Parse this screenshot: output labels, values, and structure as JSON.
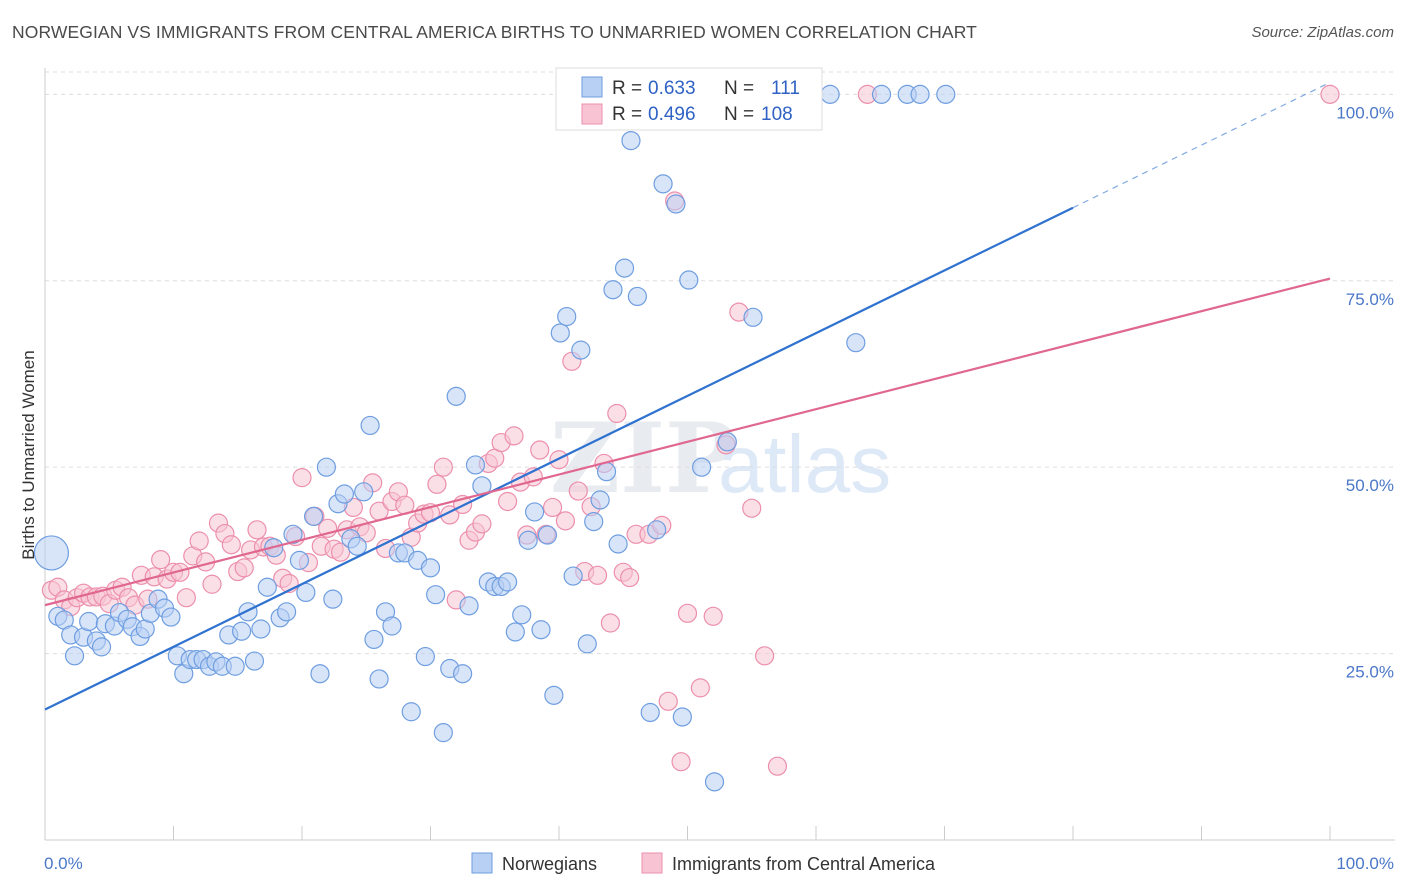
{
  "title": "NORWEGIAN VS IMMIGRANTS FROM CENTRAL AMERICA BIRTHS TO UNMARRIED WOMEN CORRELATION CHART",
  "source": "Source: ZipAtlas.com",
  "watermark": {
    "zip": "ZIP",
    "atlas": "atlas"
  },
  "colors": {
    "blue_fill": "#b8d0f4",
    "blue_stroke": "#6f9ee0",
    "blue_line": "#2f72d0",
    "pink_fill": "#f8c4d4",
    "pink_stroke": "#ec8fad",
    "pink_line": "#e0678f",
    "grid": "#dddddd",
    "tick_text": "#4a77c8"
  },
  "legend": {
    "rows": [
      {
        "r_label": "R = ",
        "r_value": "0.633",
        "n_label": "N = ",
        "n_value": "111"
      },
      {
        "r_label": "R = ",
        "r_value": "0.496",
        "n_label": "N = ",
        "n_value": "108"
      }
    ]
  },
  "chart_data": {
    "type": "scatter",
    "title": "NORWEGIAN VS IMMIGRANTS FROM CENTRAL AMERICA BIRTHS TO UNMARRIED WOMEN CORRELATION CHART",
    "xlabel": "",
    "ylabel": "Births to Unmarried Women",
    "xlim": [
      0,
      100
    ],
    "ylim": [
      0,
      103
    ],
    "x_tick_labels": [
      "0.0%",
      "100.0%"
    ],
    "y_ticks": [
      25,
      50,
      75,
      100
    ],
    "y_tick_labels": [
      "25.0%",
      "50.0%",
      "75.0%",
      "100.0%"
    ],
    "grid": true,
    "legend_position": "bottom",
    "series": [
      {
        "name": "Norwegians",
        "trend": {
          "x0": 0,
          "y0": 17.5,
          "x1": 80,
          "y1": 84.8,
          "dash_to_x": 100,
          "dash_to_y": 101.6
        },
        "points": [
          [
            0.5,
            38.5,
            "big"
          ],
          [
            1,
            30
          ],
          [
            1.5,
            29.5
          ],
          [
            2,
            27.5
          ],
          [
            2.3,
            24.7
          ],
          [
            3,
            27.2
          ],
          [
            3.4,
            29.3
          ],
          [
            4,
            26.7
          ],
          [
            4.4,
            25.9
          ],
          [
            4.7,
            29
          ],
          [
            5.4,
            28.7
          ],
          [
            5.8,
            30.5
          ],
          [
            6.4,
            29.6
          ],
          [
            6.8,
            28.6
          ],
          [
            7.4,
            27.3
          ],
          [
            7.8,
            28.3
          ],
          [
            8.2,
            30.4
          ],
          [
            8.8,
            32.3
          ],
          [
            9.3,
            31.1
          ],
          [
            9.8,
            29.9
          ],
          [
            10.3,
            24.7
          ],
          [
            10.8,
            22.3
          ],
          [
            11.3,
            24.2
          ],
          [
            11.8,
            24.2
          ],
          [
            12.3,
            24.2
          ],
          [
            12.8,
            23.3
          ],
          [
            13.3,
            23.9
          ],
          [
            13.8,
            23.3
          ],
          [
            14.3,
            27.5
          ],
          [
            14.8,
            23.3
          ],
          [
            15.3,
            28
          ],
          [
            15.8,
            30.6
          ],
          [
            16.3,
            24
          ],
          [
            16.8,
            28.3
          ],
          [
            17.3,
            33.9
          ],
          [
            17.8,
            39.2
          ],
          [
            18.3,
            29.8
          ],
          [
            18.8,
            30.6
          ],
          [
            19.3,
            41
          ],
          [
            19.8,
            37.5
          ],
          [
            20.3,
            33.2
          ],
          [
            20.9,
            43.4
          ],
          [
            21.4,
            22.3
          ],
          [
            21.9,
            50
          ],
          [
            22.4,
            32.3
          ],
          [
            22.8,
            45.1
          ],
          [
            23.3,
            46.4
          ],
          [
            23.8,
            40.4
          ],
          [
            24.3,
            39.4
          ],
          [
            24.8,
            46.7
          ],
          [
            25.3,
            55.6
          ],
          [
            25.6,
            26.9
          ],
          [
            26,
            21.6
          ],
          [
            26.5,
            30.6
          ],
          [
            27,
            28.7
          ],
          [
            27.5,
            38.5
          ],
          [
            28,
            38.5
          ],
          [
            28.5,
            17.2
          ],
          [
            29,
            37.5
          ],
          [
            29.6,
            24.6
          ],
          [
            30,
            36.5
          ],
          [
            30.4,
            32.9
          ],
          [
            31,
            14.4
          ],
          [
            31.5,
            23
          ],
          [
            32,
            59.5
          ],
          [
            32.5,
            22.3
          ],
          [
            33,
            31.4
          ],
          [
            33.5,
            50.3
          ],
          [
            34,
            47.5
          ],
          [
            34.5,
            34.6
          ],
          [
            35,
            34
          ],
          [
            35.5,
            34
          ],
          [
            36,
            34.6
          ],
          [
            36.6,
            27.9
          ],
          [
            37.1,
            30.2
          ],
          [
            37.6,
            40.2
          ],
          [
            38.1,
            44
          ],
          [
            38.6,
            28.2
          ],
          [
            39.1,
            40.9
          ],
          [
            39.6,
            19.4
          ],
          [
            40.1,
            68
          ],
          [
            40.6,
            70.2
          ],
          [
            41.1,
            35.4
          ],
          [
            41.7,
            65.7
          ],
          [
            42.2,
            26.3
          ],
          [
            42.7,
            42.7
          ],
          [
            43.2,
            45.6
          ],
          [
            43.7,
            49.4
          ],
          [
            44.2,
            73.8
          ],
          [
            44.6,
            39.7
          ],
          [
            45.1,
            76.7
          ],
          [
            45.6,
            93.8
          ],
          [
            46.1,
            72.9
          ],
          [
            47.1,
            17.1
          ],
          [
            47.6,
            41.6
          ],
          [
            48.1,
            88
          ],
          [
            49.1,
            85.3
          ],
          [
            49.6,
            16.5
          ],
          [
            50.1,
            75.1
          ],
          [
            51.1,
            50
          ],
          [
            51.6,
            100
          ],
          [
            52.1,
            7.8
          ],
          [
            53.1,
            53.4
          ],
          [
            54.1,
            100
          ],
          [
            55.1,
            70.1
          ],
          [
            61.1,
            100
          ],
          [
            63.1,
            66.7
          ],
          [
            65.1,
            100
          ],
          [
            67.1,
            100
          ],
          [
            70.1,
            100
          ],
          [
            68.1,
            100
          ],
          [
            45.1,
            100
          ],
          [
            46.6,
            100
          ]
        ]
      },
      {
        "name": "Immigrants from Central America",
        "trend": {
          "x0": 0,
          "y0": 31.5,
          "x1": 100,
          "y1": 75.3
        },
        "points": [
          [
            0.5,
            33.5
          ],
          [
            1,
            33.9
          ],
          [
            1.5,
            32.2
          ],
          [
            2,
            31.3
          ],
          [
            2.5,
            32.5
          ],
          [
            3,
            33.1
          ],
          [
            3.5,
            32.6
          ],
          [
            4,
            32.6
          ],
          [
            4.5,
            32.7
          ],
          [
            5,
            31.7
          ],
          [
            5.5,
            33.5
          ],
          [
            6,
            33.9
          ],
          [
            6.5,
            32.5
          ],
          [
            7,
            31.5
          ],
          [
            7.5,
            35.5
          ],
          [
            8,
            32.3
          ],
          [
            8.5,
            35.3
          ],
          [
            9,
            37.6
          ],
          [
            9.5,
            35
          ],
          [
            10,
            35.9
          ],
          [
            10.5,
            35.9
          ],
          [
            11,
            32.5
          ],
          [
            11.5,
            38.1
          ],
          [
            12,
            40.1
          ],
          [
            12.5,
            37.3
          ],
          [
            13,
            34.3
          ],
          [
            13.5,
            42.5
          ],
          [
            14,
            41.1
          ],
          [
            14.5,
            39.6
          ],
          [
            15,
            36
          ],
          [
            15.5,
            36.5
          ],
          [
            16,
            38.9
          ],
          [
            16.5,
            41.6
          ],
          [
            17,
            39.3
          ],
          [
            17.5,
            39.4
          ],
          [
            18,
            38.2
          ],
          [
            18.5,
            35.1
          ],
          [
            19,
            34.4
          ],
          [
            19.5,
            40.7
          ],
          [
            20,
            48.6
          ],
          [
            20.5,
            37.2
          ],
          [
            21,
            43.4
          ],
          [
            21.5,
            39.4
          ],
          [
            22,
            41.8
          ],
          [
            22.5,
            39
          ],
          [
            23,
            38.6
          ],
          [
            23.5,
            41.6
          ],
          [
            24,
            44.6
          ],
          [
            24.5,
            42
          ],
          [
            25,
            41.2
          ],
          [
            25.5,
            47.9
          ],
          [
            26,
            44.1
          ],
          [
            26.5,
            39.1
          ],
          [
            27,
            45.4
          ],
          [
            27.5,
            46.7
          ],
          [
            28,
            44.9
          ],
          [
            28.5,
            40.6
          ],
          [
            29,
            42.5
          ],
          [
            29.5,
            43.7
          ],
          [
            30,
            43.9
          ],
          [
            30.5,
            47.7
          ],
          [
            31,
            50
          ],
          [
            31.5,
            43.6
          ],
          [
            32,
            32.2
          ],
          [
            32.5,
            45
          ],
          [
            33,
            40.2
          ],
          [
            33.5,
            41.3
          ],
          [
            34,
            42.4
          ],
          [
            34.5,
            50.5
          ],
          [
            35,
            51.2
          ],
          [
            35.5,
            53.3
          ],
          [
            36,
            45.4
          ],
          [
            36.5,
            54.2
          ],
          [
            37,
            48
          ],
          [
            37.5,
            40.9
          ],
          [
            38,
            48.7
          ],
          [
            38.5,
            52.3
          ],
          [
            39,
            41
          ],
          [
            39.5,
            44.6
          ],
          [
            40,
            51
          ],
          [
            40.5,
            42.8
          ],
          [
            41,
            64.2
          ],
          [
            41.5,
            46.8
          ],
          [
            42,
            36
          ],
          [
            42.5,
            44.7
          ],
          [
            43,
            35.5
          ],
          [
            43.5,
            50.5
          ],
          [
            44,
            29.1
          ],
          [
            44.5,
            57.2
          ],
          [
            45,
            35.9
          ],
          [
            45.5,
            35.2
          ],
          [
            46,
            41
          ],
          [
            47,
            41
          ],
          [
            48,
            42.2
          ],
          [
            48.5,
            18.6
          ],
          [
            49,
            85.7
          ],
          [
            49.5,
            10.5
          ],
          [
            50,
            30.4
          ],
          [
            51,
            20.4
          ],
          [
            52,
            30
          ],
          [
            53,
            53
          ],
          [
            54,
            70.8
          ],
          [
            55,
            44.5
          ],
          [
            56,
            24.7
          ],
          [
            57,
            9.9
          ],
          [
            59,
            100
          ],
          [
            64,
            100
          ],
          [
            100,
            100
          ]
        ]
      }
    ]
  }
}
